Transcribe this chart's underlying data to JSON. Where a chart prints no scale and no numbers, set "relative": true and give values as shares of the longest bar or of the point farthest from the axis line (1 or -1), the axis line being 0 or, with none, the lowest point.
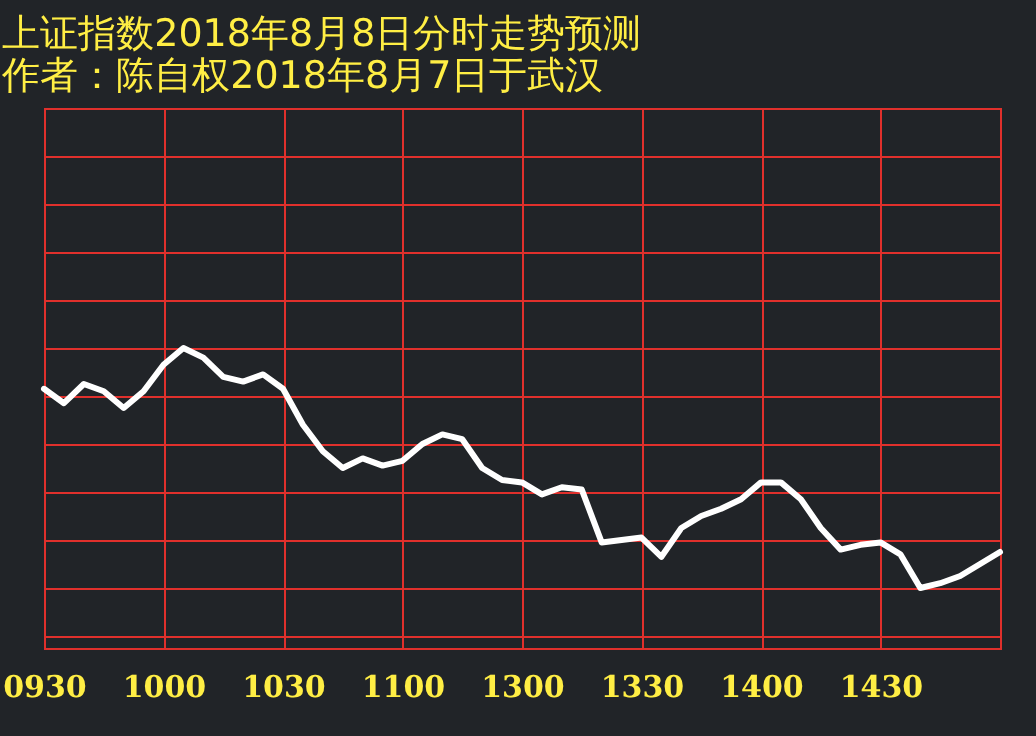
{
  "chart_data": {
    "type": "line",
    "title": "上证指数2018年8月8日分时走势预测",
    "subtitle": "作者：陈自权2018年8月7日于武汉",
    "relative": true,
    "grid": true,
    "categories": [
      "0930",
      null,
      null,
      null,
      null,
      null,
      "1000",
      null,
      null,
      null,
      null,
      null,
      "1030",
      null,
      null,
      null,
      null,
      null,
      "1100",
      null,
      null,
      null,
      null,
      null,
      "1300",
      null,
      null,
      null,
      null,
      null,
      "1330",
      null,
      null,
      null,
      null,
      null,
      "1400",
      null,
      null,
      null,
      null,
      null,
      "1430",
      null,
      null,
      null,
      null,
      null,
      null
    ],
    "series": [
      {
        "color": "#ffffff",
        "values": [
          0.83,
          0.77,
          0.85,
          0.82,
          0.75,
          0.82,
          0.93,
          1.0,
          0.96,
          0.88,
          0.86,
          0.89,
          0.83,
          0.68,
          0.57,
          0.5,
          0.54,
          0.51,
          0.53,
          0.6,
          0.64,
          0.62,
          0.5,
          0.45,
          0.44,
          0.39,
          0.42,
          0.41,
          0.19,
          0.2,
          0.21,
          0.13,
          0.25,
          0.3,
          0.33,
          0.37,
          0.44,
          0.44,
          0.37,
          0.25,
          0.16,
          0.18,
          0.19,
          0.14,
          0,
          0.02,
          0.05,
          0.1,
          0.15
        ]
      }
    ]
  }
}
